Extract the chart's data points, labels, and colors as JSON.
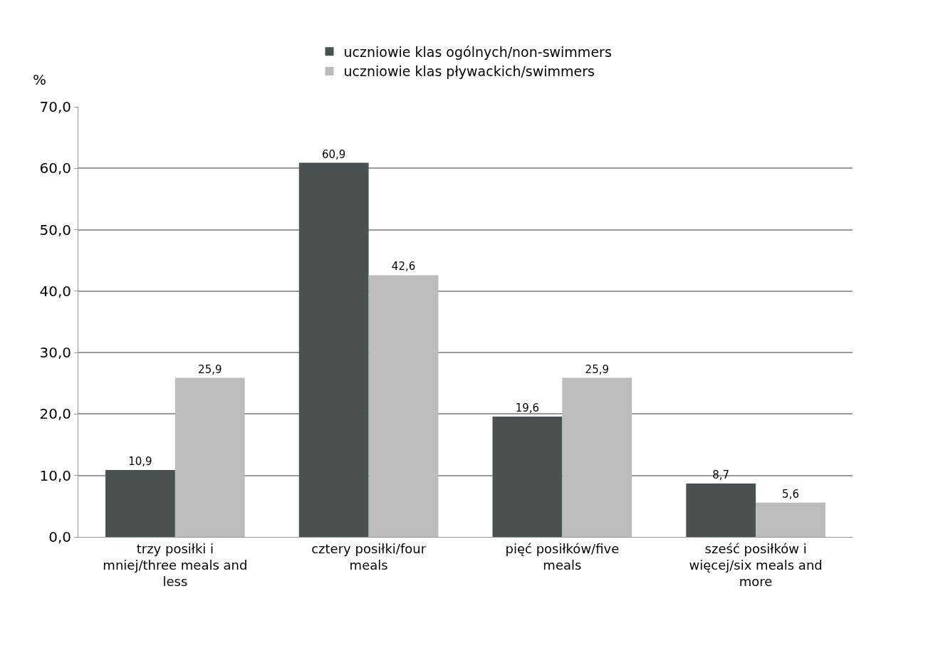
{
  "chart_data": {
    "type": "bar",
    "ylabel": "%",
    "categories": [
      "trzy posiłki i mniej/three meals and less",
      "cztery posiłki/four meals",
      "pięć posiłków/five meals",
      "sześć posiłków i więcej/six meals and more"
    ],
    "series": [
      {
        "name": "uczniowie klas ogólnych/non-swimmers",
        "color": "#4a5150",
        "values": [
          10.9,
          60.9,
          19.6,
          8.7
        ],
        "value_labels": [
          "10,9",
          "60,9",
          "19,6",
          "8,7"
        ]
      },
      {
        "name": "uczniowie klas pływackich/swimmers",
        "color": "#bcbcbc",
        "values": [
          25.9,
          42.6,
          25.9,
          5.6
        ],
        "value_labels": [
          "25,9",
          "42,6",
          "25,9",
          "5,6"
        ]
      }
    ],
    "ylim": [
      0,
      70
    ],
    "yticks": [
      {
        "value": 0,
        "label": "0,0"
      },
      {
        "value": 10,
        "label": "10,0"
      },
      {
        "value": 20,
        "label": "20,0"
      },
      {
        "value": 30,
        "label": "30,0"
      },
      {
        "value": 40,
        "label": "40,0"
      },
      {
        "value": 50,
        "label": "50,0"
      },
      {
        "value": 60,
        "label": "60,0"
      },
      {
        "value": 70,
        "label": "70,0"
      }
    ],
    "grid": "y",
    "legend": "top"
  }
}
